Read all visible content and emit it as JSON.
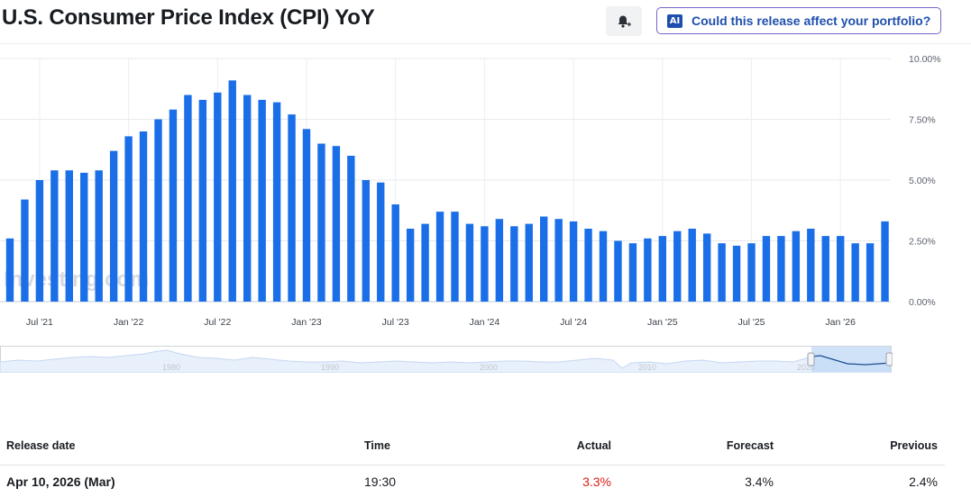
{
  "header": {
    "title": "U.S. Consumer Price Index (CPI) YoY",
    "ai_badge": "AI",
    "ai_button_label": "Could this release affect your portfolio?"
  },
  "watermark": "Investing.com",
  "colors": {
    "bar": "#1a6fe8",
    "actual_red": "#d91e18",
    "ai_accent": "#1f4fae"
  },
  "chart_data": {
    "type": "bar",
    "categories": [
      "2021-05",
      "2021-06",
      "2021-07",
      "2021-08",
      "2021-09",
      "2021-10",
      "2021-11",
      "2021-12",
      "2022-01",
      "2022-02",
      "2022-03",
      "2022-04",
      "2022-05",
      "2022-06",
      "2022-07",
      "2022-08",
      "2022-09",
      "2022-10",
      "2022-11",
      "2022-12",
      "2023-01",
      "2023-02",
      "2023-03",
      "2023-04",
      "2023-05",
      "2023-06",
      "2023-07",
      "2023-08",
      "2023-09",
      "2023-10",
      "2023-11",
      "2023-12",
      "2024-01",
      "2024-02",
      "2024-03",
      "2024-04",
      "2024-05",
      "2024-06",
      "2024-07",
      "2024-08",
      "2024-09",
      "2024-10",
      "2024-11",
      "2024-12",
      "2025-01",
      "2025-02",
      "2025-03",
      "2025-04",
      "2025-05",
      "2025-06",
      "2025-07",
      "2025-08",
      "2025-09",
      "2025-10",
      "2025-11",
      "2025-12",
      "2026-01",
      "2026-02",
      "2026-03",
      "2026-04"
    ],
    "values": [
      2.6,
      4.2,
      5.0,
      5.4,
      5.4,
      5.3,
      5.4,
      6.2,
      6.8,
      7.0,
      7.5,
      7.9,
      8.5,
      8.3,
      8.6,
      9.1,
      8.5,
      8.3,
      8.2,
      7.7,
      7.1,
      6.5,
      6.4,
      6.0,
      5.0,
      4.9,
      4.0,
      3.0,
      3.2,
      3.7,
      3.7,
      3.2,
      3.1,
      3.4,
      3.1,
      3.2,
      3.5,
      3.4,
      3.3,
      3.0,
      2.9,
      2.5,
      2.4,
      2.6,
      2.7,
      2.9,
      3.0,
      2.8,
      2.4,
      2.3,
      2.4,
      2.7,
      2.7,
      2.9,
      3.0,
      2.7,
      2.7,
      2.4,
      2.4,
      3.3
    ],
    "x_tick_labels": [
      "Jul '21",
      "Jan '22",
      "Jul '22",
      "Jan '23",
      "Jul '23",
      "Jan '24",
      "Jul '24",
      "Jan '25",
      "Jul '25",
      "Jan '26"
    ],
    "y_tick_labels": [
      "0.00%",
      "2.50%",
      "5.00%",
      "7.50%",
      "10.00%"
    ],
    "ylim": [
      0,
      10
    ],
    "grid": true,
    "navigator_labels": [
      "1980",
      "1990",
      "2000",
      "2010",
      "2020"
    ]
  },
  "table": {
    "headers": [
      "Release date",
      "Time",
      "Actual",
      "Forecast",
      "Previous"
    ],
    "row": {
      "release_date": "Apr 10, 2026 (Mar)",
      "time": "19:30",
      "actual": "3.3%",
      "forecast": "3.4%",
      "previous": "2.4%"
    }
  }
}
